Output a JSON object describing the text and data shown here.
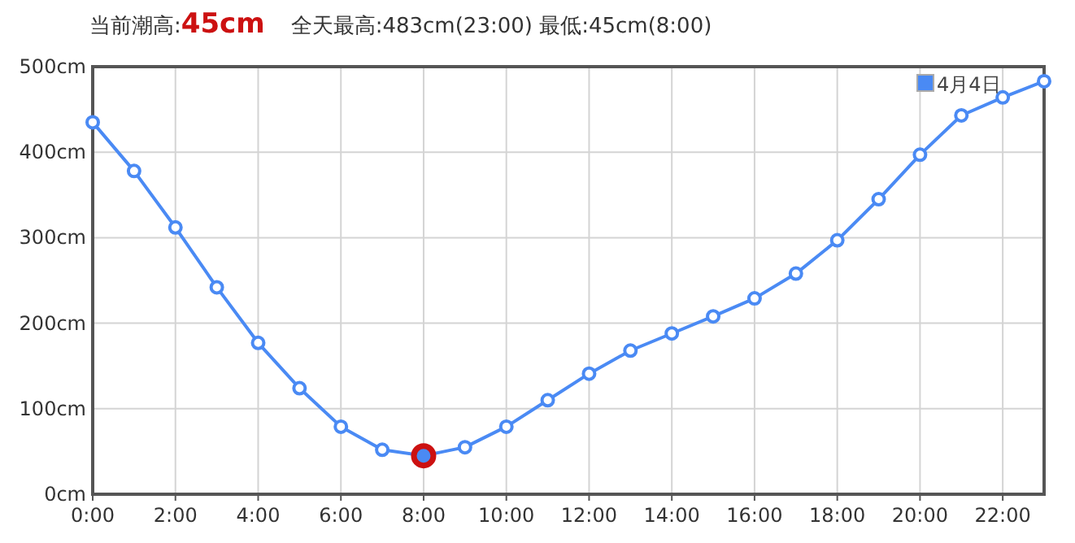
{
  "chart_data": {
    "type": "line",
    "title": "当前潮高:45cm",
    "subtitle": "全天最高:483cm(23:00) 最低:45cm(8:00)",
    "x": [
      0,
      1,
      2,
      3,
      4,
      5,
      6,
      7,
      8,
      9,
      10,
      11,
      12,
      13,
      14,
      15,
      16,
      17,
      18,
      19,
      20,
      21,
      22,
      23
    ],
    "series": [
      {
        "name": "4月4日",
        "color": "#4a8af4",
        "values": [
          435,
          378,
          312,
          242,
          177,
          124,
          79,
          52,
          45,
          55,
          79,
          110,
          141,
          168,
          188,
          208,
          229,
          258,
          297,
          345,
          397,
          443,
          464,
          483
        ]
      },
      {
        "type": "scatter",
        "color": "#cc1111",
        "x": [
          8
        ],
        "values": [
          45
        ]
      }
    ],
    "xlim": [
      0,
      23
    ],
    "xticks": [
      {
        "value": 0,
        "label": "0:00"
      },
      {
        "value": 2,
        "label": "2:00"
      },
      {
        "value": 4,
        "label": "4:00"
      },
      {
        "value": 6,
        "label": "6:00"
      },
      {
        "value": 8,
        "label": "8:00"
      },
      {
        "value": 10,
        "label": "10:00"
      },
      {
        "value": 12,
        "label": "12:00"
      },
      {
        "value": 14,
        "label": "14:00"
      },
      {
        "value": 16,
        "label": "16:00"
      },
      {
        "value": 18,
        "label": "18:00"
      },
      {
        "value": 20,
        "label": "20:00"
      },
      {
        "value": 22,
        "label": "22:00"
      }
    ],
    "ylim": [
      0,
      500
    ],
    "yticks": [
      {
        "value": 0,
        "label": "0cm"
      },
      {
        "value": 100,
        "label": "100cm"
      },
      {
        "value": 200,
        "label": "200cm"
      },
      {
        "value": 300,
        "label": "300cm"
      },
      {
        "value": 400,
        "label": "400cm"
      },
      {
        "value": 500,
        "label": "500cm"
      }
    ],
    "grid": true,
    "legend": "top right",
    "marker": "circle",
    "line_style": "solid"
  }
}
